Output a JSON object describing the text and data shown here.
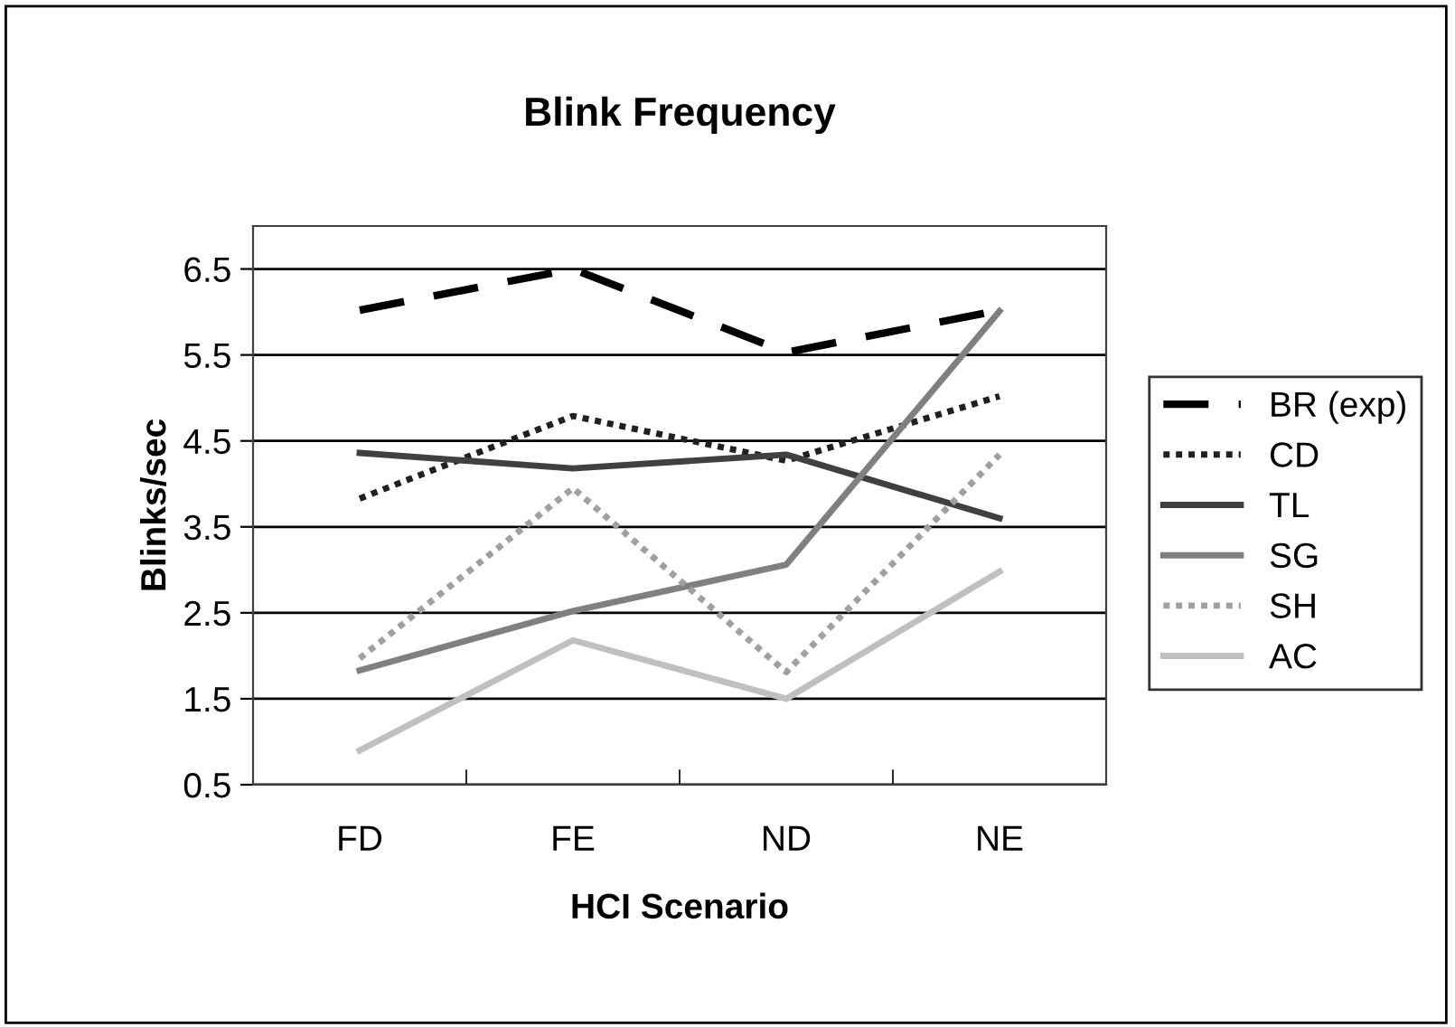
{
  "chart_data": {
    "type": "line",
    "title": "Blink Frequency",
    "xlabel": "HCI Scenario",
    "ylabel": "Blinks/sec",
    "categories": [
      "FD",
      "FE",
      "ND",
      "NE"
    ],
    "series": [
      {
        "name": "BR (exp)",
        "color": "#000000",
        "line_style": "dashed",
        "values": [
          6.02,
          6.5,
          5.53,
          6.02
        ]
      },
      {
        "name": "CD",
        "color": "#202020",
        "line_style": "dotted",
        "values": [
          3.83,
          4.79,
          4.27,
          5.02
        ]
      },
      {
        "name": "TL",
        "color": "#404040",
        "line_style": "solid",
        "values": [
          4.36,
          4.18,
          4.34,
          3.6
        ]
      },
      {
        "name": "SG",
        "color": "#808080",
        "line_style": "solid",
        "values": [
          1.83,
          2.52,
          3.06,
          6.01
        ]
      },
      {
        "name": "SH",
        "color": "#a0a0a0",
        "line_style": "dotted",
        "values": [
          1.97,
          3.95,
          1.81,
          4.34
        ]
      },
      {
        "name": "AC",
        "color": "#c0c0c0",
        "line_style": "solid",
        "values": [
          0.9,
          2.18,
          1.5,
          2.98
        ]
      }
    ],
    "ylim": [
      0.5,
      7.0
    ],
    "yticks": [
      {
        "value": 0.5,
        "label": "0.5"
      },
      {
        "value": 1.5,
        "label": "1.5"
      },
      {
        "value": 2.5,
        "label": "2.5"
      },
      {
        "value": 3.5,
        "label": "3.5"
      },
      {
        "value": 4.5,
        "label": "4.5"
      },
      {
        "value": 5.5,
        "label": "5.5"
      },
      {
        "value": 6.5,
        "label": "6.5"
      }
    ],
    "grid": "y",
    "legend": "right",
    "marker": "none"
  }
}
